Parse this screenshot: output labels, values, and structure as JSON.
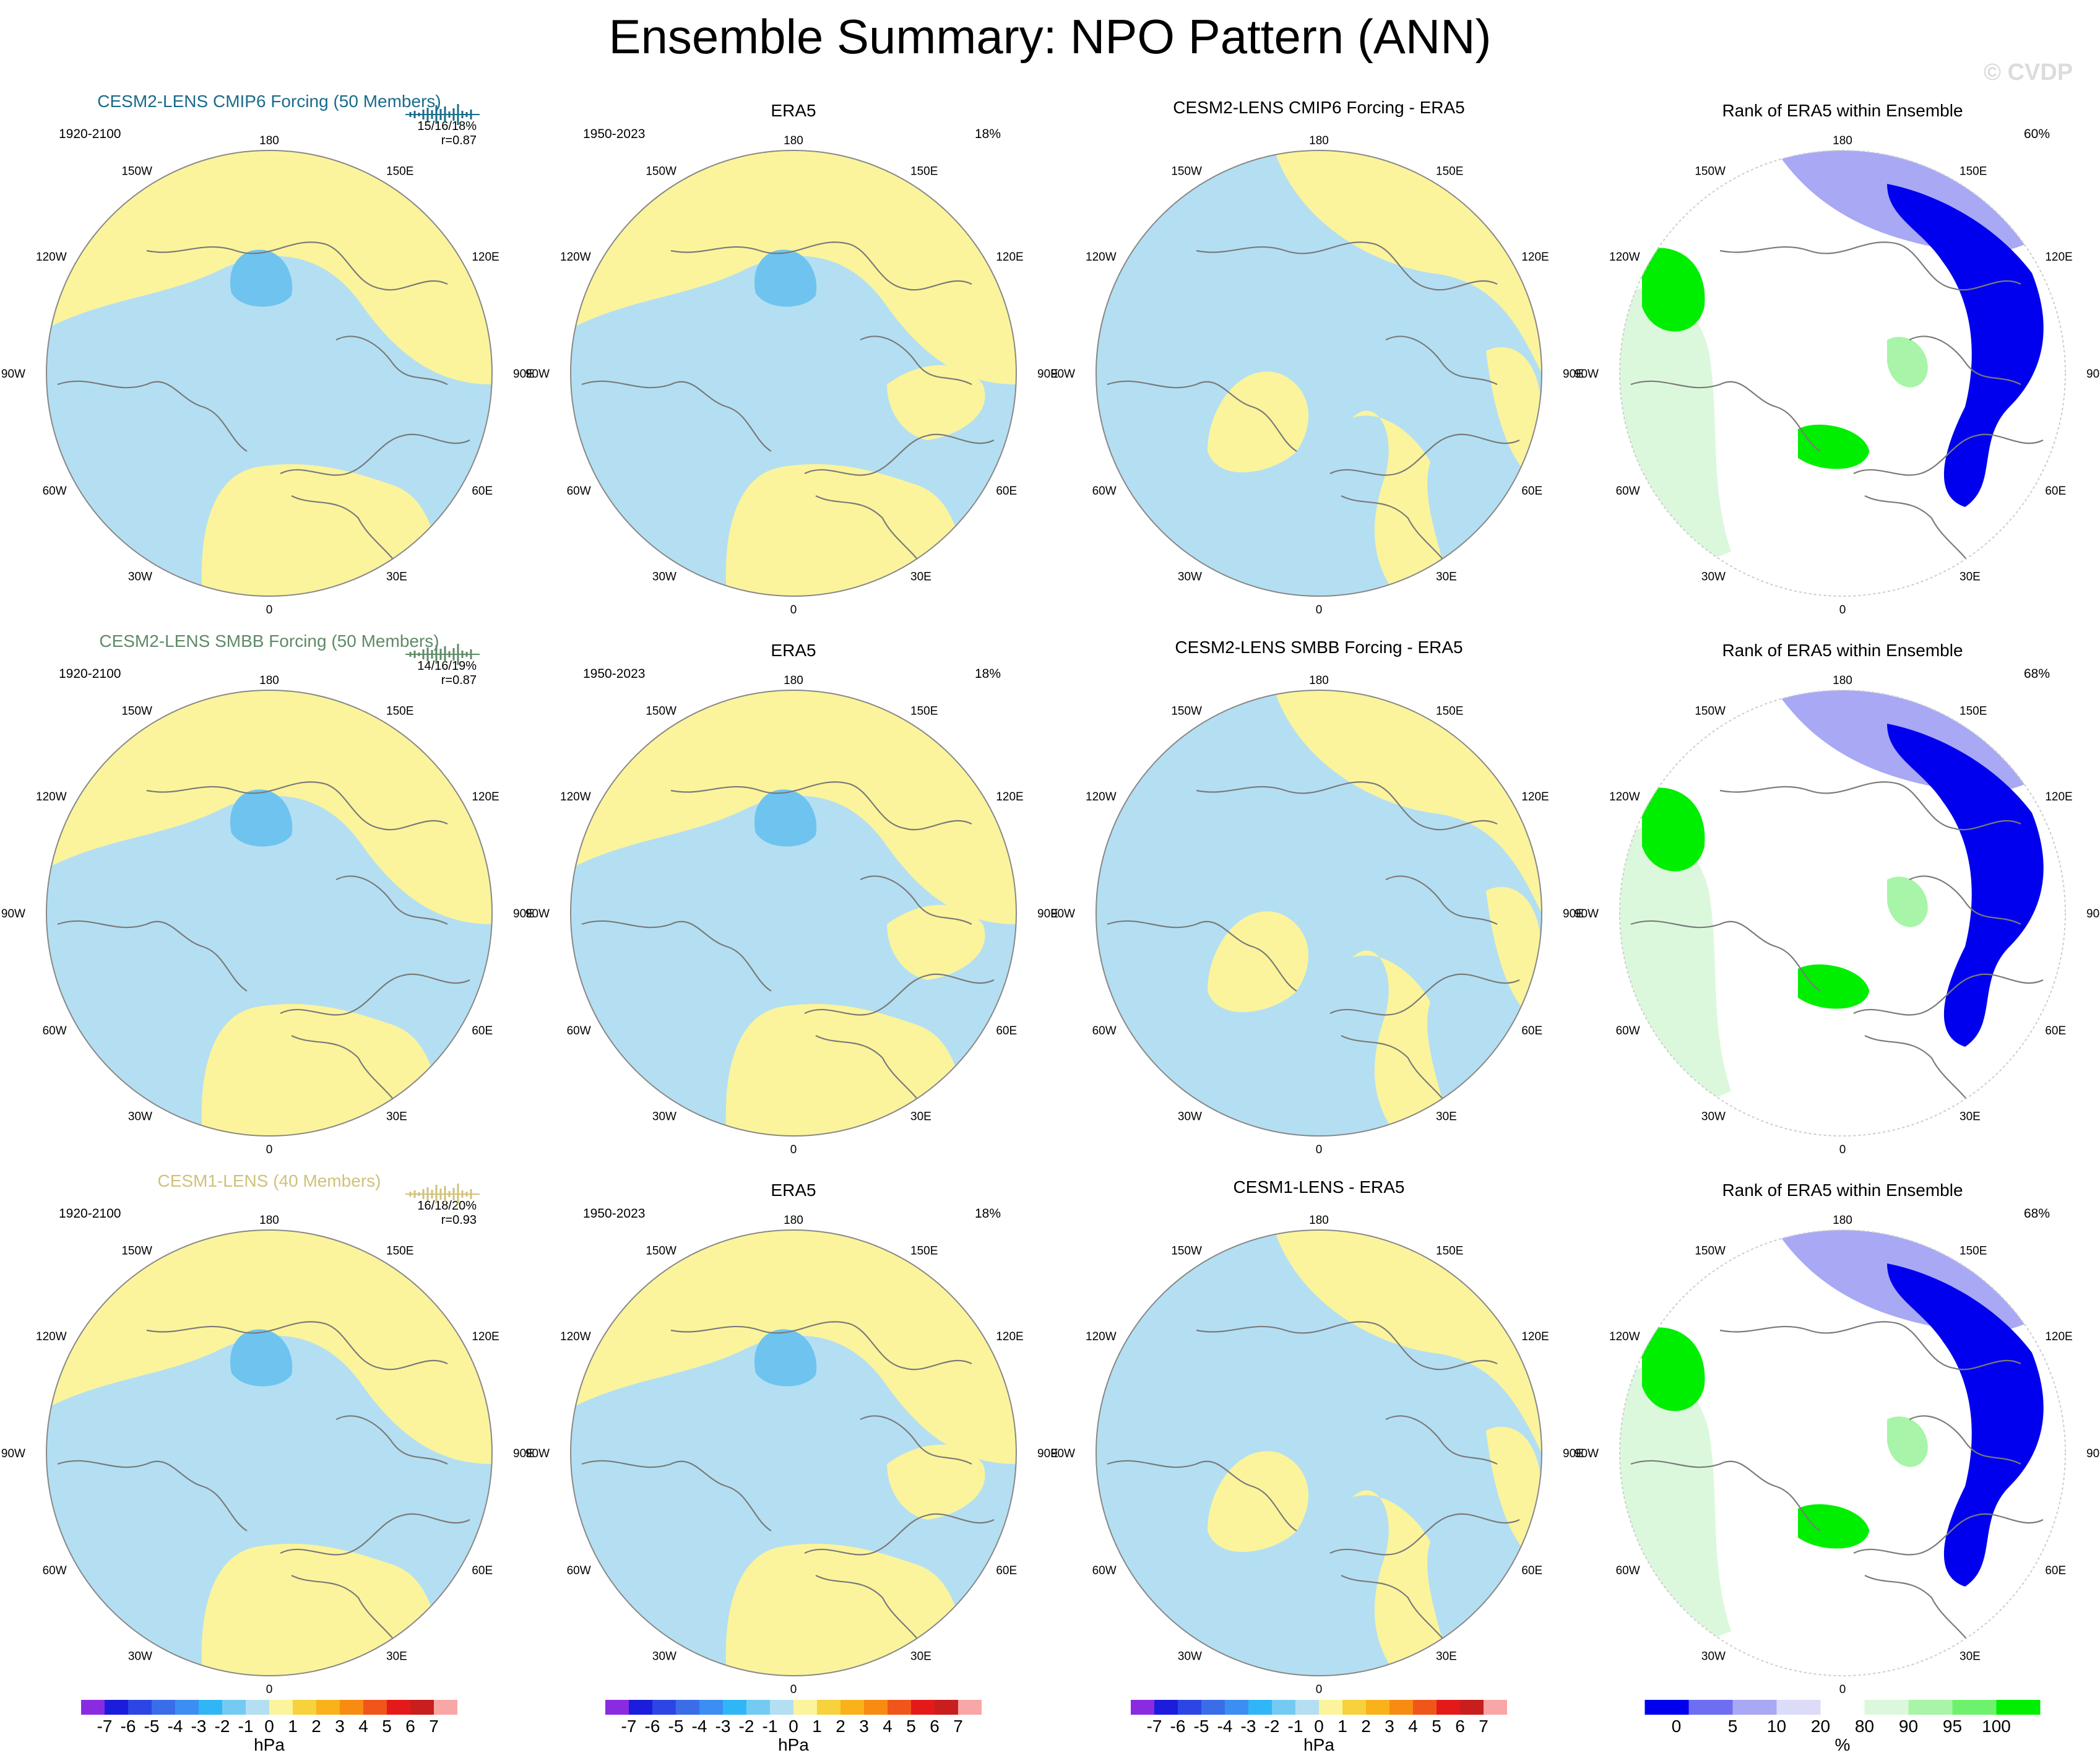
{
  "title": "Ensemble Summary: NPO Pattern (ANN)",
  "watermark": "© CVDP",
  "colors": {
    "yellow": "#fbf49c",
    "lightblue": "#b4dff2",
    "midblue": "#6ec4ef",
    "land_outline": "#7a7a7a",
    "circle_outline": "#888888",
    "row_title_colors": [
      "#1a6b8a",
      "#5f8a66",
      "#cfc27a"
    ]
  },
  "longitude_labels": {
    "top": "180",
    "bottom": "0",
    "right": [
      "150E",
      "120E",
      "90E",
      "60E",
      "30E"
    ],
    "left": [
      "150W",
      "120W",
      "90W",
      "60W",
      "30W"
    ]
  },
  "rows": [
    {
      "model": {
        "title": "CESM2-LENS CMIP6 Forcing (50 Members)",
        "period": "1920-2100",
        "stats": "15/16/18%",
        "corr": "r=0.87"
      },
      "obs": {
        "title": "ERA5",
        "period": "1950-2023",
        "pct": "18%"
      },
      "diff": {
        "title": "CESM2-LENS CMIP6 Forcing - ERA5"
      },
      "rank": {
        "title": "Rank of ERA5 within Ensemble",
        "pct": "60%"
      }
    },
    {
      "model": {
        "title": "CESM2-LENS SMBB Forcing (50 Members)",
        "period": "1920-2100",
        "stats": "14/16/19%",
        "corr": "r=0.87"
      },
      "obs": {
        "title": "ERA5",
        "period": "1950-2023",
        "pct": "18%"
      },
      "diff": {
        "title": "CESM2-LENS SMBB Forcing - ERA5"
      },
      "rank": {
        "title": "Rank of ERA5 within Ensemble",
        "pct": "68%"
      }
    },
    {
      "model": {
        "title": "CESM1-LENS (40 Members)",
        "period": "1920-2100",
        "stats": "16/18/20%",
        "corr": "r=0.93"
      },
      "obs": {
        "title": "ERA5",
        "period": "1950-2023",
        "pct": "18%"
      },
      "diff": {
        "title": "CESM1-LENS - ERA5"
      },
      "rank": {
        "title": "Rank of ERA5 within Ensemble",
        "pct": "68%"
      }
    }
  ],
  "colorbars": {
    "hpa": {
      "unit": "hPa",
      "labels": [
        "-7",
        "-6",
        "-5",
        "-4",
        "-3",
        "-2",
        "-1",
        "0",
        "1",
        "2",
        "3",
        "4",
        "5",
        "6",
        "7"
      ],
      "colors": [
        "#8a2be2",
        "#1c1cdc",
        "#2c46e6",
        "#3a6ee8",
        "#3c8ef2",
        "#30b6f6",
        "#74cbf2",
        "#b4dff2",
        "#fbf49c",
        "#f7d23c",
        "#f9b21a",
        "#f78c10",
        "#f0561a",
        "#e41a1a",
        "#c81e1e",
        "#f9a6a6"
      ]
    },
    "rank": {
      "unit": "%",
      "labels": [
        "0",
        "5",
        "10",
        "20",
        "80",
        "90",
        "95",
        "100"
      ],
      "colors": [
        "#0000ee",
        "#6e6ef2",
        "#a8a8f4",
        "#dcdcf8",
        "#ffffff",
        "#dcf8dc",
        "#a8f4a8",
        "#6ef26e",
        "#00ee00"
      ]
    }
  },
  "chart_data": [
    {
      "type": "heatmap",
      "title": "CESM2-LENS CMIP6 Forcing (50 Members)",
      "unit": "hPa",
      "levels": [
        -7,
        -6,
        -5,
        -4,
        -3,
        -2,
        -1,
        0,
        1,
        2,
        3,
        4,
        5,
        6,
        7
      ],
      "dominant_range": [
        -2,
        1
      ],
      "pattern_percent": "15/16/18%",
      "correlation": 0.87
    },
    {
      "type": "heatmap",
      "title": "ERA5",
      "unit": "hPa",
      "levels": [
        -7,
        -6,
        -5,
        -4,
        -3,
        -2,
        -1,
        0,
        1,
        2,
        3,
        4,
        5,
        6,
        7
      ],
      "dominant_range": [
        -2,
        1
      ],
      "pattern_percent": "18%"
    },
    {
      "type": "heatmap",
      "title": "CESM2-LENS CMIP6 Forcing - ERA5",
      "unit": "hPa",
      "levels": [
        -7,
        -6,
        -5,
        -4,
        -3,
        -2,
        -1,
        0,
        1,
        2,
        3,
        4,
        5,
        6,
        7
      ],
      "dominant_range": [
        -1,
        1
      ]
    },
    {
      "type": "heatmap",
      "title": "Rank of ERA5 within Ensemble",
      "unit": "%",
      "levels": [
        0,
        5,
        10,
        20,
        80,
        90,
        95,
        100
      ],
      "pattern_percent": "60%"
    },
    {
      "type": "heatmap",
      "title": "CESM2-LENS SMBB Forcing (50 Members)",
      "unit": "hPa",
      "levels": [
        -7,
        -6,
        -5,
        -4,
        -3,
        -2,
        -1,
        0,
        1,
        2,
        3,
        4,
        5,
        6,
        7
      ],
      "dominant_range": [
        -2,
        1
      ],
      "pattern_percent": "14/16/19%",
      "correlation": 0.87
    },
    {
      "type": "heatmap",
      "title": "ERA5",
      "unit": "hPa",
      "levels": [
        -7,
        -6,
        -5,
        -4,
        -3,
        -2,
        -1,
        0,
        1,
        2,
        3,
        4,
        5,
        6,
        7
      ],
      "dominant_range": [
        -2,
        1
      ],
      "pattern_percent": "18%"
    },
    {
      "type": "heatmap",
      "title": "CESM2-LENS SMBB Forcing - ERA5",
      "unit": "hPa",
      "levels": [
        -7,
        -6,
        -5,
        -4,
        -3,
        -2,
        -1,
        0,
        1,
        2,
        3,
        4,
        5,
        6,
        7
      ],
      "dominant_range": [
        -1,
        1
      ]
    },
    {
      "type": "heatmap",
      "title": "Rank of ERA5 within Ensemble",
      "unit": "%",
      "levels": [
        0,
        5,
        10,
        20,
        80,
        90,
        95,
        100
      ],
      "pattern_percent": "68%"
    },
    {
      "type": "heatmap",
      "title": "CESM1-LENS (40 Members)",
      "unit": "hPa",
      "levels": [
        -7,
        -6,
        -5,
        -4,
        -3,
        -2,
        -1,
        0,
        1,
        2,
        3,
        4,
        5,
        6,
        7
      ],
      "dominant_range": [
        -2,
        1
      ],
      "pattern_percent": "16/18/20%",
      "correlation": 0.93
    },
    {
      "type": "heatmap",
      "title": "ERA5",
      "unit": "hPa",
      "levels": [
        -7,
        -6,
        -5,
        -4,
        -3,
        -2,
        -1,
        0,
        1,
        2,
        3,
        4,
        5,
        6,
        7
      ],
      "dominant_range": [
        -2,
        1
      ],
      "pattern_percent": "18%"
    },
    {
      "type": "heatmap",
      "title": "CESM1-LENS - ERA5",
      "unit": "hPa",
      "levels": [
        -7,
        -6,
        -5,
        -4,
        -3,
        -2,
        -1,
        0,
        1,
        2,
        3,
        4,
        5,
        6,
        7
      ],
      "dominant_range": [
        -1,
        1
      ]
    },
    {
      "type": "heatmap",
      "title": "Rank of ERA5 within Ensemble",
      "unit": "%",
      "levels": [
        0,
        5,
        10,
        20,
        80,
        90,
        95,
        100
      ],
      "pattern_percent": "68%"
    }
  ]
}
